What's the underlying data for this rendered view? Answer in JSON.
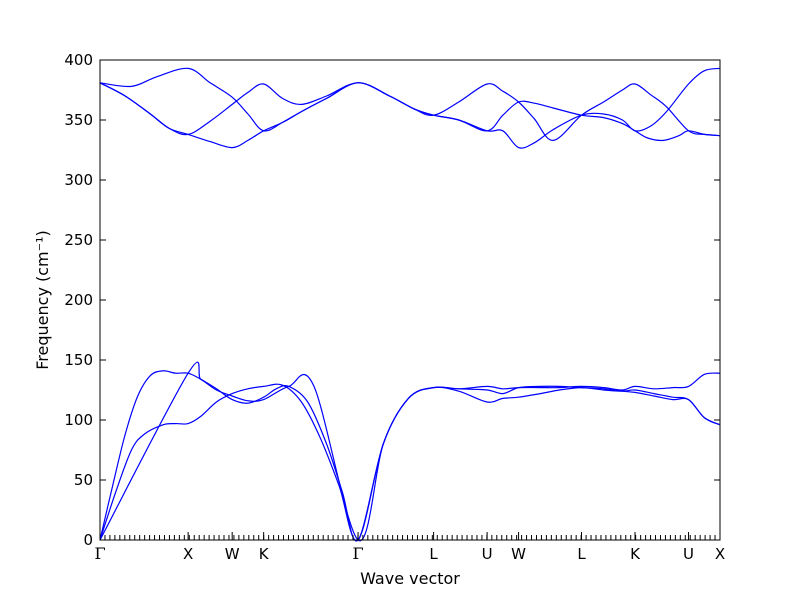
{
  "chart_data": {
    "type": "line",
    "xlabel": "Wave vector",
    "ylabel": "Frequency (cm⁻¹)",
    "ylim": [
      0,
      400
    ],
    "yticks": [
      0,
      50,
      100,
      150,
      200,
      250,
      300,
      350,
      400
    ],
    "xlim": [
      0,
      9.85
    ],
    "kpoints": [
      {
        "label": "Γ",
        "x": 0
      },
      {
        "label": "X",
        "x": 1.4
      },
      {
        "label": "W",
        "x": 2.1
      },
      {
        "label": "K",
        "x": 2.6
      },
      {
        "label": "Γ",
        "x": 4.1
      },
      {
        "label": "L",
        "x": 5.3
      },
      {
        "label": "U",
        "x": 6.15
      },
      {
        "label": "W",
        "x": 6.65
      },
      {
        "label": "L",
        "x": 7.65
      },
      {
        "label": "K",
        "x": 8.5
      },
      {
        "label": "U",
        "x": 9.35
      },
      {
        "label": "X",
        "x": 9.85
      }
    ],
    "line_color": "#0000ff",
    "series": [
      {
        "x": [
          0,
          0.25,
          0.5,
          0.7,
          1.0,
          1.2,
          1.4,
          1.6,
          1.85,
          2.1,
          2.35,
          2.6,
          2.9,
          3.2,
          3.5,
          3.8,
          4.1,
          4.5,
          4.9,
          5.3,
          5.7,
          6.15,
          6.4,
          6.65,
          7.0,
          7.3,
          7.65,
          8.0,
          8.3,
          8.5,
          8.8,
          9.1,
          9.35,
          9.6,
          9.85
        ],
        "values": [
          0,
          40,
          75,
          88,
          96,
          97,
          97,
          103,
          115,
          122,
          126,
          128,
          129,
          115,
          85,
          45,
          0,
          80,
          118,
          127,
          124,
          115,
          118,
          119,
          122,
          125,
          127,
          125,
          124,
          125,
          122,
          119,
          117,
          102,
          96
        ]
      },
      {
        "x": [
          0,
          0.2,
          0.4,
          0.6,
          0.8,
          1.0,
          1.2,
          1.4,
          1.6,
          1.85,
          2.1,
          2.35,
          2.6,
          2.8,
          3.0,
          3.3,
          3.6,
          3.85,
          4.1,
          4.5,
          4.9,
          5.3,
          5.7,
          6.15,
          6.4,
          6.65,
          7.0,
          7.3,
          7.65,
          8.0,
          8.3,
          8.5,
          8.8,
          9.1,
          9.35,
          9.6,
          9.85
        ],
        "values": [
          0,
          45,
          88,
          120,
          137,
          141,
          139,
          139,
          134,
          126,
          117,
          114,
          119,
          126,
          128,
          115,
          80,
          40,
          0,
          80,
          118,
          127,
          126,
          125,
          122,
          127,
          128,
          128,
          127,
          126,
          124,
          123,
          120,
          117,
          117,
          102,
          96
        ]
      },
      {
        "x": [
          0,
          1.4,
          1.6,
          1.85,
          2.1,
          2.35,
          2.6,
          3.0,
          3.4,
          4.1,
          4.5,
          4.9,
          5.3,
          5.7,
          6.15,
          6.4,
          6.65,
          7.0,
          7.3,
          7.65,
          8.0,
          8.3,
          8.5,
          8.8,
          9.1,
          9.35,
          9.6,
          9.85
        ],
        "values": [
          0,
          139,
          134,
          125,
          120,
          116,
          117,
          128,
          128,
          0,
          80,
          118,
          127,
          126,
          128,
          126,
          127,
          127,
          127,
          128,
          127,
          125,
          128,
          126,
          127,
          128,
          138,
          139
        ]
      },
      {
        "x": [
          0,
          0.4,
          0.8,
          1.1,
          1.4,
          1.75,
          2.1,
          2.35,
          2.6,
          2.9,
          3.2,
          3.6,
          4.1,
          4.6,
          5.0,
          5.3,
          5.7,
          6.15,
          6.4,
          6.65,
          6.9,
          7.2,
          7.65,
          8.0,
          8.3,
          8.5,
          8.7,
          8.95,
          9.2,
          9.35,
          9.6,
          9.85
        ],
        "values": [
          381,
          370,
          355,
          343,
          338,
          332,
          327,
          333,
          341,
          348,
          357,
          368,
          381,
          370,
          359,
          354,
          350,
          341,
          354,
          365,
          364,
          360,
          354,
          352,
          347,
          341,
          335,
          333,
          337,
          341,
          338,
          337
        ]
      },
      {
        "x": [
          0,
          0.4,
          0.8,
          1.1,
          1.4,
          1.75,
          2.1,
          2.35,
          2.6,
          2.9,
          3.2,
          3.6,
          4.1,
          4.6,
          5.0,
          5.3,
          5.7,
          6.15,
          6.4,
          6.65,
          6.9,
          7.2,
          7.65,
          8.0,
          8.3,
          8.5,
          8.75,
          9.0,
          9.35,
          9.6,
          9.85
        ],
        "values": [
          381,
          370,
          355,
          343,
          338,
          349,
          363,
          373,
          380,
          368,
          363,
          370,
          381,
          370,
          359,
          354,
          365,
          380,
          374,
          365,
          351,
          333,
          354,
          365,
          375,
          380,
          371,
          361,
          341,
          338,
          337
        ]
      },
      {
        "x": [
          0,
          0.5,
          0.9,
          1.4,
          1.75,
          2.1,
          2.35,
          2.6,
          2.9,
          3.2,
          3.6,
          4.1,
          4.6,
          5.0,
          5.3,
          5.7,
          6.15,
          6.4,
          6.65,
          6.9,
          7.2,
          7.65,
          8.0,
          8.3,
          8.5,
          8.75,
          9.0,
          9.35,
          9.6,
          9.85
        ],
        "values": [
          381,
          378,
          386,
          393,
          381,
          369,
          355,
          341,
          348,
          357,
          368,
          381,
          370,
          359,
          354,
          350,
          341,
          341,
          327,
          331,
          342,
          354,
          355,
          350,
          341,
          345,
          357,
          380,
          391,
          393
        ]
      }
    ]
  }
}
